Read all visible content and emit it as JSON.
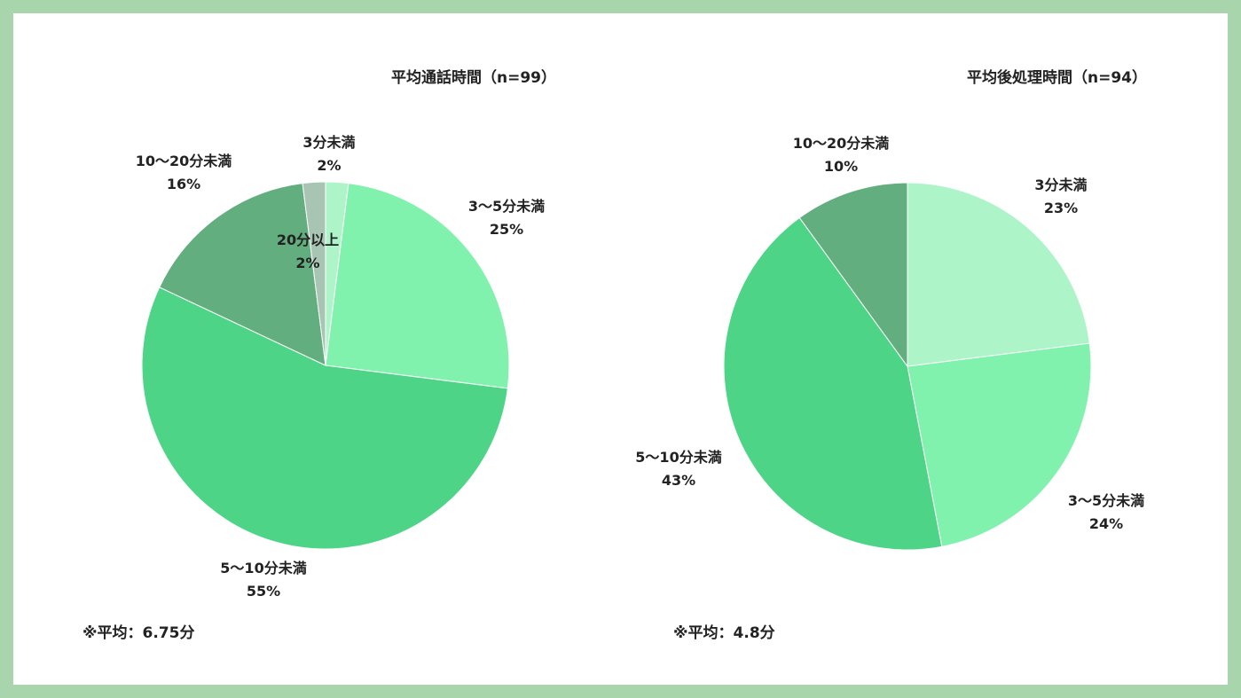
{
  "chart_data": [
    {
      "type": "pie",
      "title": "平均通話時間（n=99）",
      "labels": [
        "3分未満",
        "3〜5分未満",
        "5〜10分未満",
        "10〜20分未満",
        "20分以上"
      ],
      "values": [
        2,
        25,
        55,
        16,
        2
      ],
      "value_labels": [
        "2%",
        "25%",
        "55%",
        "16%",
        "2%"
      ],
      "colors": [
        "#adf5c8",
        "#80f2ae",
        "#4dd486",
        "#62ae7f",
        "#a8c4b2"
      ],
      "start_angle": "top",
      "direction": "clockwise",
      "note": "※平均：6.75分"
    },
    {
      "type": "pie",
      "title": "平均後処理時間（n=94）",
      "labels": [
        "3分未満",
        "3〜5分未満",
        "5〜10分未満",
        "10〜20分未満"
      ],
      "values": [
        23,
        24,
        43,
        10
      ],
      "value_labels": [
        "23%",
        "24%",
        "43%",
        "10%"
      ],
      "colors": [
        "#adf5c8",
        "#80f2ae",
        "#4dd486",
        "#62ae7f"
      ],
      "start_angle": "top",
      "direction": "clockwise",
      "note": "※平均：4.8分"
    }
  ]
}
